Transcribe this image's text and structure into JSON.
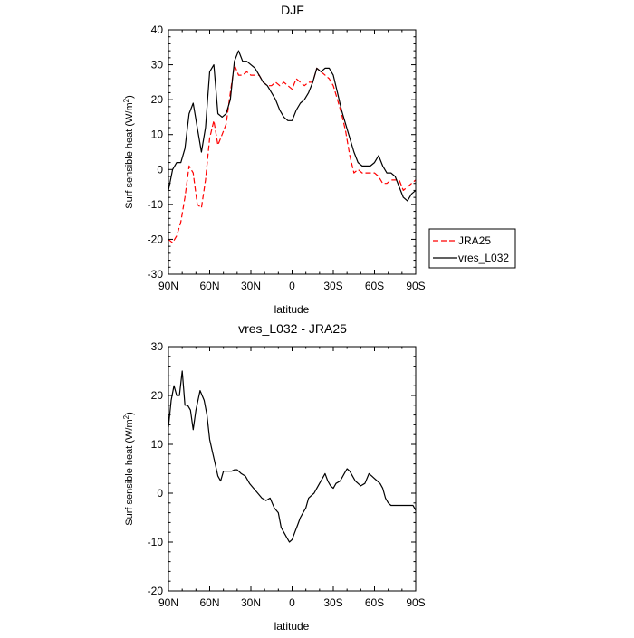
{
  "chart_data": [
    {
      "type": "line",
      "title": "DJF",
      "xlabel": "latitude",
      "ylabel": "Surf sensible heat (W/m",
      "ylabel_sup": "2",
      "ylabel_close": ")",
      "xlim": [
        90,
        -90
      ],
      "ylim": [
        -30,
        40
      ],
      "xticks": [
        {
          "value": 90,
          "label": "90N"
        },
        {
          "value": 60,
          "label": "60N"
        },
        {
          "value": 30,
          "label": "30N"
        },
        {
          "value": 0,
          "label": "0"
        },
        {
          "value": -30,
          "label": "30S"
        },
        {
          "value": -60,
          "label": "60S"
        },
        {
          "value": -90,
          "label": "90S"
        }
      ],
      "yticks": [
        -30,
        -20,
        -10,
        0,
        10,
        20,
        30,
        40
      ],
      "legend_position": "right",
      "series": [
        {
          "name": "JRA25",
          "color": "#ff0000",
          "dash": "dashed",
          "x": [
            90,
            87,
            84,
            81,
            78,
            75,
            72,
            69,
            66,
            63,
            60,
            57,
            54,
            51,
            48,
            45,
            42,
            39,
            36,
            33,
            30,
            27,
            24,
            21,
            18,
            15,
            12,
            9,
            6,
            3,
            0,
            -3,
            -6,
            -9,
            -12,
            -15,
            -18,
            -21,
            -24,
            -27,
            -30,
            -33,
            -36,
            -39,
            -42,
            -45,
            -48,
            -51,
            -54,
            -57,
            -60,
            -63,
            -66,
            -69,
            -72,
            -75,
            -78,
            -81,
            -84,
            -87,
            -90
          ],
          "values": [
            -20,
            -21,
            -19,
            -15,
            -8,
            1,
            -1,
            -10,
            -11,
            -3,
            9,
            14,
            7,
            10,
            13,
            22,
            30,
            27,
            27,
            28,
            27,
            27,
            27,
            25,
            24,
            24,
            25,
            24,
            25,
            24,
            23,
            26,
            25,
            24,
            25,
            25,
            29,
            28,
            27,
            26,
            24,
            20,
            16,
            11,
            4,
            -1,
            0,
            -1,
            -1,
            -1,
            -1,
            -2,
            -4,
            -4,
            -3,
            -3,
            -3,
            -6,
            -5,
            -4,
            -3
          ]
        },
        {
          "name": "vres_L032",
          "color": "#000000",
          "dash": "solid",
          "x": [
            90,
            87,
            84,
            81,
            78,
            75,
            72,
            69,
            66,
            63,
            60,
            57,
            54,
            51,
            48,
            45,
            42,
            39,
            36,
            33,
            30,
            27,
            24,
            21,
            18,
            15,
            12,
            9,
            6,
            3,
            0,
            -3,
            -6,
            -9,
            -12,
            -15,
            -18,
            -21,
            -24,
            -27,
            -30,
            -33,
            -36,
            -39,
            -42,
            -45,
            -48,
            -51,
            -54,
            -57,
            -60,
            -63,
            -66,
            -69,
            -72,
            -75,
            -78,
            -81,
            -84,
            -87,
            -90
          ],
          "values": [
            -6,
            0,
            2,
            2,
            6,
            16,
            19,
            12,
            5,
            12,
            28,
            30,
            16,
            15,
            16,
            20,
            31,
            34,
            31,
            31,
            30,
            29,
            27,
            25,
            24,
            22,
            20,
            17,
            15,
            14,
            14,
            17,
            19,
            20,
            22,
            25,
            29,
            28,
            29,
            29,
            27,
            22,
            17,
            13,
            9,
            5,
            2,
            1,
            1,
            1,
            2,
            4,
            1,
            -1,
            -1,
            -2,
            -5,
            -8,
            -9,
            -7,
            -6
          ]
        }
      ]
    },
    {
      "type": "line",
      "title": "vres_L032 - JRA25",
      "xlabel": "latitude",
      "ylabel": "Surf sensible heat (W/m",
      "ylabel_sup": "2",
      "ylabel_close": ")",
      "xlim": [
        90,
        -90
      ],
      "ylim": [
        -20,
        30
      ],
      "xticks": [
        {
          "value": 90,
          "label": "90N"
        },
        {
          "value": 60,
          "label": "60N"
        },
        {
          "value": 30,
          "label": "30N"
        },
        {
          "value": 0,
          "label": "0"
        },
        {
          "value": -30,
          "label": "30S"
        },
        {
          "value": -60,
          "label": "60S"
        },
        {
          "value": -90,
          "label": "90S"
        }
      ],
      "yticks": [
        -20,
        -10,
        0,
        10,
        20,
        30
      ],
      "series": [
        {
          "name": "vres_L032 - JRA25",
          "color": "#000000",
          "dash": "solid",
          "x": [
            90,
            88,
            86,
            84,
            82,
            80,
            78,
            76,
            74,
            72,
            70,
            67,
            64,
            62,
            60,
            58,
            56,
            54,
            52,
            50,
            48,
            46,
            44,
            42,
            40,
            37,
            34,
            31,
            28,
            25,
            22,
            19,
            16,
            13,
            10,
            8,
            6,
            4,
            2,
            0,
            -2,
            -4,
            -6,
            -8,
            -10,
            -12,
            -14,
            -16,
            -18,
            -20,
            -22,
            -24,
            -26,
            -28,
            -30,
            -32,
            -35,
            -38,
            -40,
            -42,
            -44,
            -46,
            -48,
            -50,
            -53,
            -56,
            -58,
            -60,
            -62,
            -64,
            -66,
            -68,
            -70,
            -72,
            -74,
            -76,
            -78,
            -80,
            -82,
            -84,
            -86,
            -88,
            -90
          ],
          "values": [
            13.5,
            19,
            22,
            20,
            20,
            25,
            18,
            18,
            17,
            13,
            17,
            21,
            19,
            16,
            11,
            8.5,
            6,
            3.5,
            2.5,
            4.5,
            4.5,
            4.5,
            4.5,
            4.8,
            4.8,
            4,
            3.5,
            2,
            1,
            0,
            -1,
            -1.5,
            -1,
            -3,
            -4,
            -7,
            -8,
            -9,
            -10,
            -9.5,
            -8,
            -6.5,
            -5,
            -4,
            -3,
            -1,
            -0.5,
            0,
            1,
            2,
            3,
            4,
            2.5,
            1.5,
            1,
            2,
            2.5,
            4,
            5,
            4.5,
            3.5,
            2.5,
            2,
            1.5,
            2,
            4,
            3.5,
            3,
            2.5,
            2,
            1,
            -1,
            -2,
            -2.5,
            -2.5,
            -2.5,
            -2.5,
            -2.5,
            -2.5,
            -2.5,
            -2.5,
            -2.5,
            -3.5
          ]
        }
      ]
    }
  ]
}
